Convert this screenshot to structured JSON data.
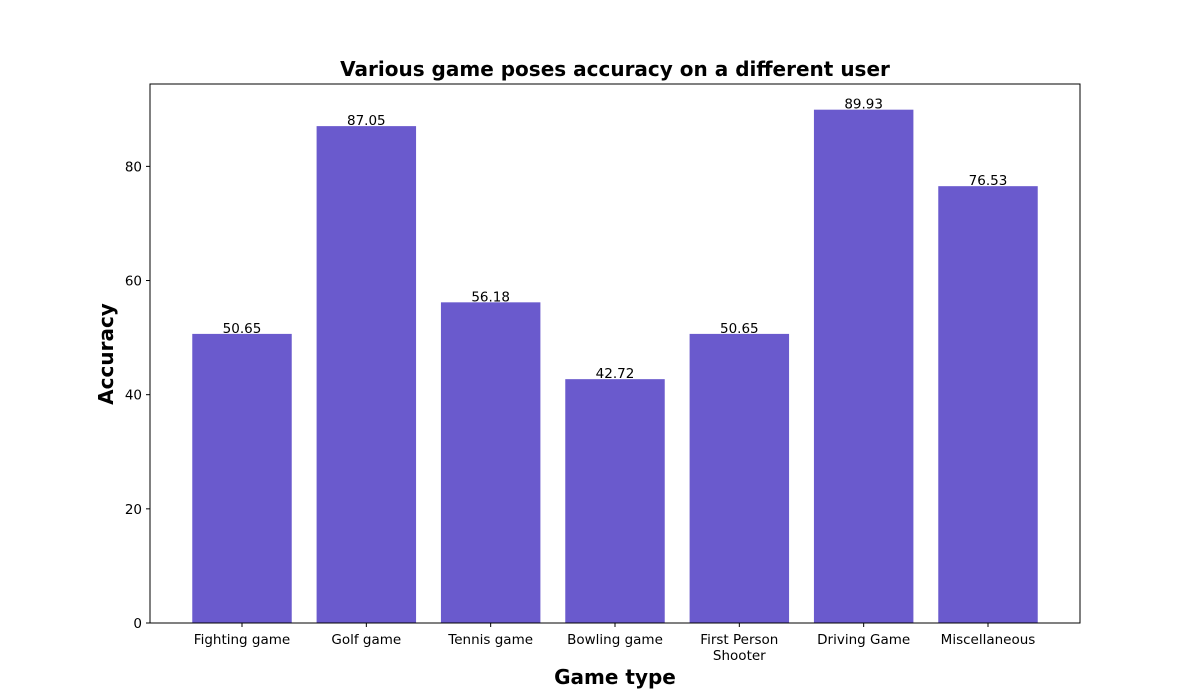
{
  "chart_data": {
    "type": "bar",
    "title": "Various game poses accuracy on a different user",
    "xlabel": "Game type",
    "ylabel": "Accuracy",
    "categories": [
      [
        "Fighting game"
      ],
      [
        "Golf game"
      ],
      [
        "Tennis game"
      ],
      [
        "Bowling game"
      ],
      [
        "First Person",
        "Shooter"
      ],
      [
        "Driving Game"
      ],
      [
        "Miscellaneous"
      ]
    ],
    "values": [
      50.65,
      87.05,
      56.18,
      42.72,
      50.65,
      89.93,
      76.53
    ],
    "value_labels": [
      "50.65",
      "87.05",
      "56.18",
      "42.72",
      "50.65",
      "89.93",
      "76.53"
    ],
    "ylim": [
      0,
      94.43
    ],
    "yticks": [
      0,
      20,
      40,
      60,
      80
    ],
    "bar_color": "#6a5acd",
    "grid": false,
    "legend": "none"
  }
}
